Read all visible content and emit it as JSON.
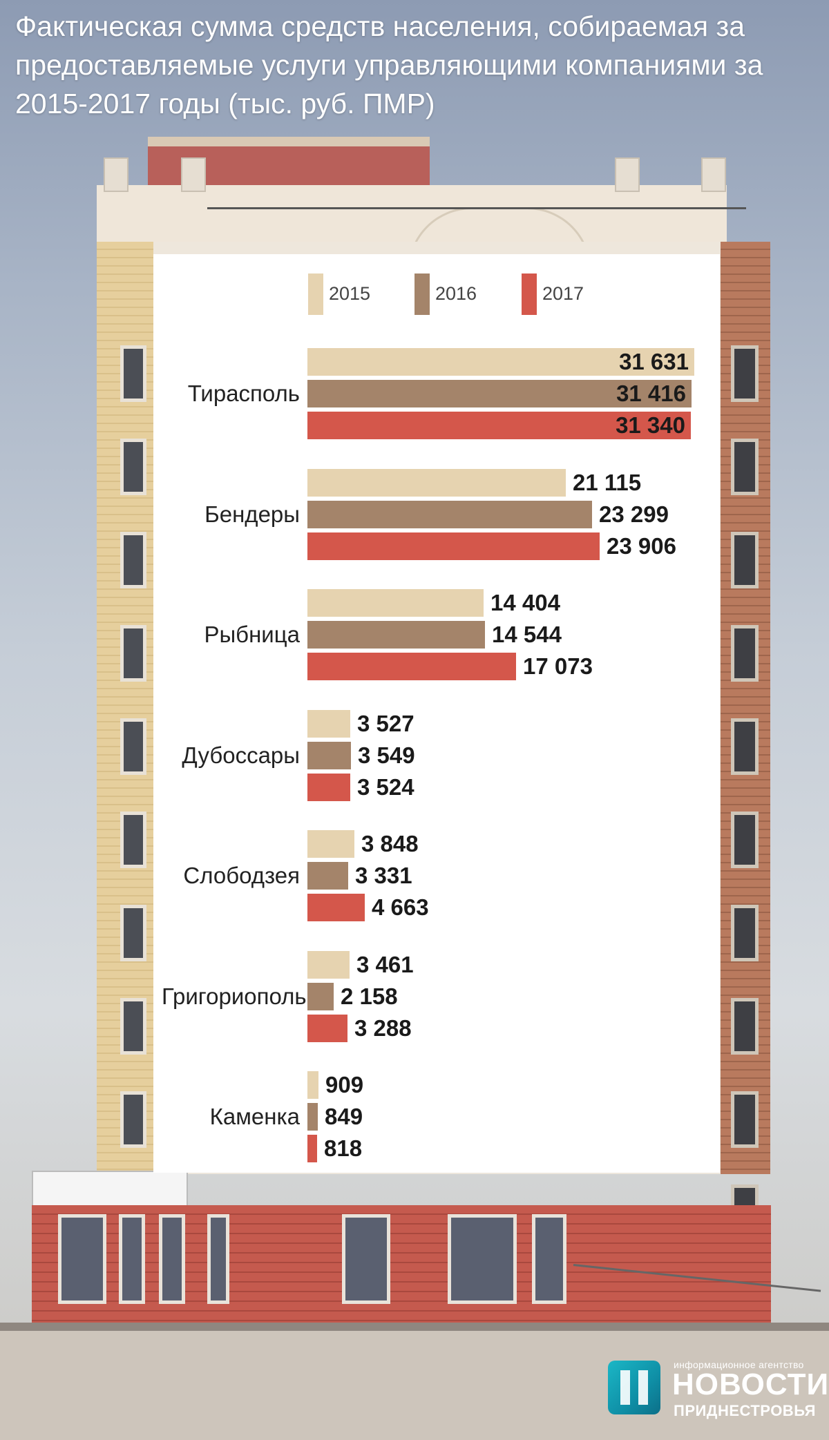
{
  "title": "Фактическая сумма средств населения, собираемая за предоставляемые услуги управляющими компаниями за 2015-2017 годы (тыс. руб. ПМР)",
  "colors": {
    "2015": "#e6d3b0",
    "2016": "#a4846a",
    "2017": "#d4574b"
  },
  "chart_data": {
    "type": "bar",
    "orientation": "horizontal",
    "title": "Фактическая сумма средств населения, собираемая за предоставляемые услуги управляющими компаниями за 2015-2017 годы (тыс. руб. ПМР)",
    "categories": [
      "Тирасполь",
      "Бендеры",
      "Рыбница",
      "Дубоссары",
      "Слободзея",
      "Григориополь",
      "Каменка"
    ],
    "series": [
      {
        "name": "2015",
        "values": [
          31631,
          21115,
          14404,
          3527,
          3848,
          3461,
          909
        ],
        "labels": [
          "31 631",
          "21 115",
          "14 404",
          "3 527",
          "3 848",
          "3 461",
          "909"
        ]
      },
      {
        "name": "2016",
        "values": [
          31416,
          23299,
          14544,
          3549,
          3331,
          2158,
          849
        ],
        "labels": [
          "31 416",
          "23 299",
          "14 544",
          "3 549",
          "3 331",
          "2 158",
          "849"
        ]
      },
      {
        "name": "2017",
        "values": [
          31340,
          23906,
          17073,
          3524,
          4663,
          3288,
          818
        ],
        "labels": [
          "31 340",
          "23 906",
          "17 073",
          "3 524",
          "4 663",
          "3 288",
          "818"
        ]
      }
    ],
    "xlim": [
      0,
      31631
    ],
    "legend": "top",
    "grid": false
  },
  "logo": {
    "small": "информационное агентство",
    "big": "НОВОСТИ",
    "sub": "ПРИДНЕСТРОВЬЯ"
  }
}
